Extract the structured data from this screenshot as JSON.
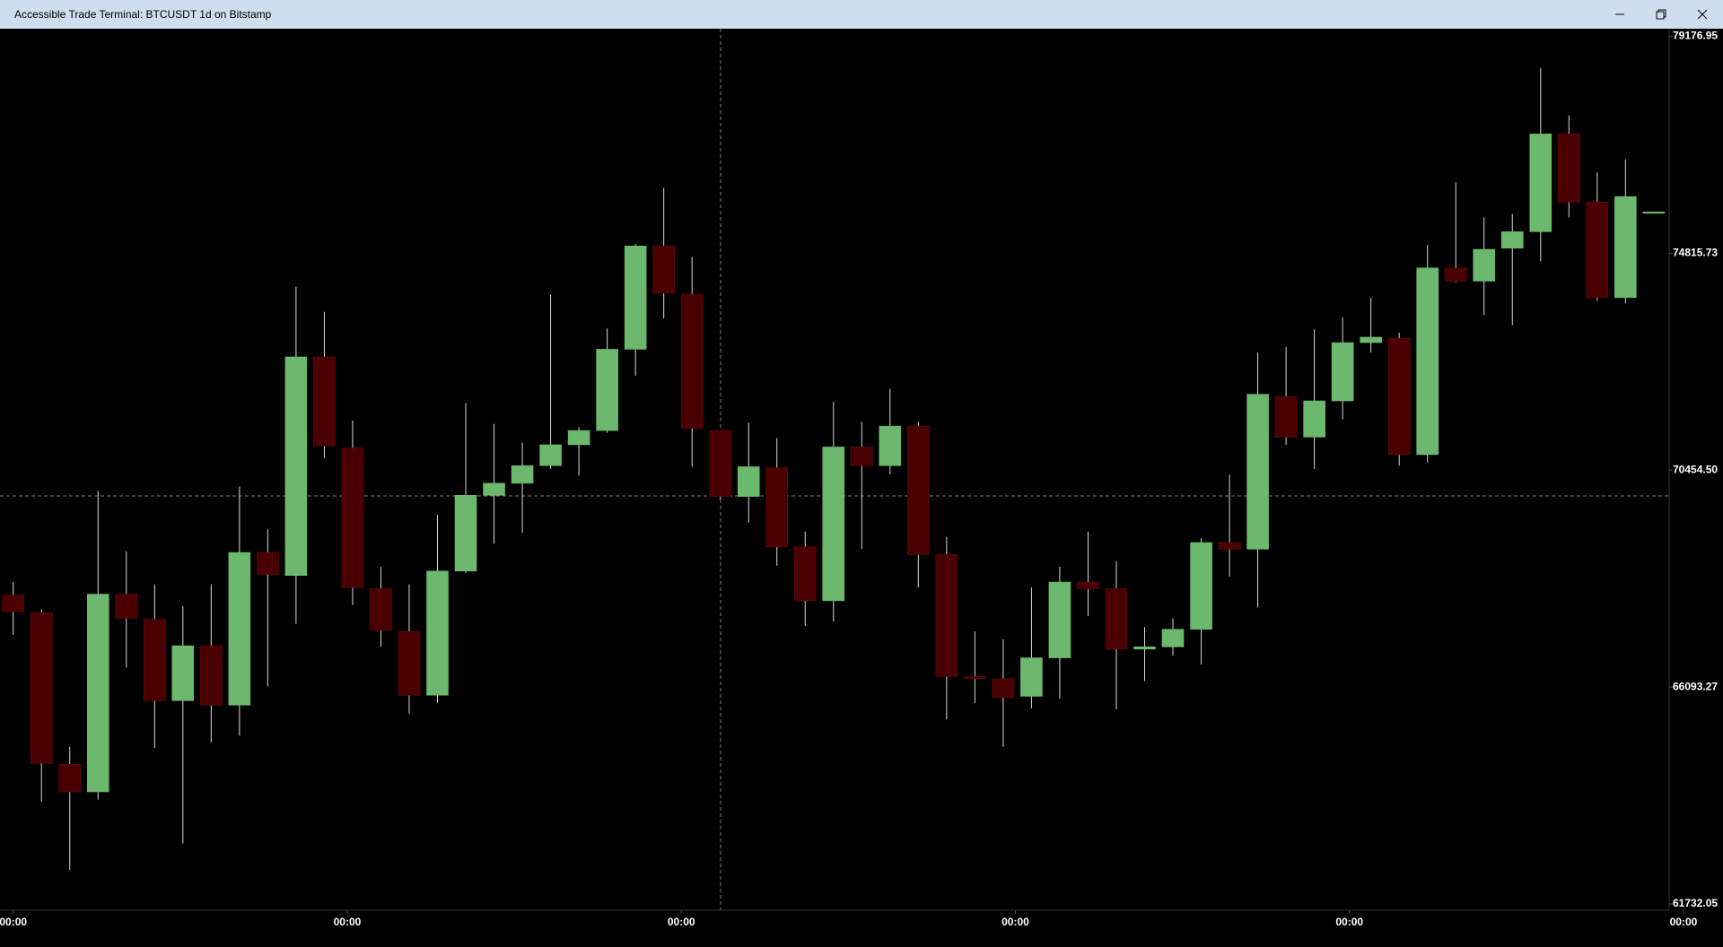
{
  "chart_data": {
    "type": "candlestick",
    "title": "Accessible Trade Terminal: BTCUSDT 1d on Bitstamp",
    "up_color": "#6cb86e",
    "down_color": "#4a0000",
    "wick_color": "#d8d8d8",
    "open": [
      67938,
      67585,
      64538,
      63986,
      67960,
      67453,
      65819,
      66923,
      65730,
      68799,
      68336,
      72730,
      70897,
      68071,
      67210,
      65929,
      68424,
      69948,
      70190,
      70544,
      70963,
      71250,
      72884,
      74960,
      73988,
      71250,
      69925,
      70500,
      68910,
      67828,
      70919,
      70544,
      71339,
      68755,
      66304,
      66260,
      65907,
      66680,
      68203,
      68071,
      66856,
      66901,
      67254,
      68998,
      68866,
      71935,
      71118,
      71846,
      73017,
      73105,
      70765,
      74518,
      74253,
      74916,
      75247,
      77212,
      75843,
      73922,
      75644
    ],
    "high": [
      68203,
      67651,
      64891,
      70036,
      68821,
      68159,
      67717,
      68159,
      70124,
      69263,
      74143,
      73635,
      71449,
      68512,
      68159,
      69550,
      71802,
      71383,
      71007,
      73988,
      71317,
      73304,
      75004,
      76130,
      74739,
      71250,
      71405,
      71096,
      69219,
      71824,
      71427,
      72089,
      71427,
      69109,
      67210,
      67055,
      68093,
      68512,
      69219,
      68623,
      67298,
      67475,
      69086,
      70367,
      72818,
      72928,
      73282,
      73525,
      73922,
      73215,
      74982,
      76240,
      75534,
      75600,
      78537,
      77587,
      76439,
      76704,
      75644
    ],
    "low": [
      67143,
      63787,
      62418,
      63831,
      66481,
      64869,
      62948,
      64980,
      65112,
      66106,
      67364,
      70698,
      67740,
      66901,
      65554,
      65774,
      68380,
      68976,
      69197,
      70477,
      70345,
      71206,
      72354,
      73502,
      70522,
      69859,
      69396,
      68534,
      67320,
      67408,
      68866,
      70367,
      68093,
      65443,
      65774,
      64891,
      65664,
      65863,
      67519,
      65642,
      66216,
      66724,
      66547,
      68314,
      67695,
      70963,
      70477,
      71471,
      72818,
      70544,
      70610,
      74231,
      73569,
      73370,
      74651,
      75534,
      73856,
      73812,
      75644
    ],
    "close": [
      67607,
      64560,
      63986,
      67960,
      67475,
      65819,
      66923,
      65730,
      68799,
      68358,
      72730,
      70941,
      68093,
      67232,
      65929,
      68424,
      69948,
      70190,
      70544,
      70963,
      71250,
      72884,
      74960,
      74010,
      71294,
      69925,
      70522,
      68910,
      67828,
      70919,
      70544,
      71339,
      68755,
      66304,
      66260,
      65885,
      66680,
      68203,
      68071,
      66856,
      66901,
      67254,
      68998,
      68866,
      71979,
      71118,
      71846,
      73017,
      73127,
      70765,
      74518,
      74253,
      74893,
      75247,
      77212,
      75843,
      73922,
      75953,
      75644
    ],
    "ylim": [
      61732.05,
      79176.95
    ],
    "yticks": [
      61732.05,
      66093.27,
      {
        "value": 70454.5,
        "label": "70454.50"
      },
      74815.73,
      79176.95
    ],
    "xticks": [
      {
        "value": 0,
        "label": "00:00"
      },
      {
        "value": 11.81,
        "label": "00:00"
      },
      {
        "value": 23.62,
        "label": "00:00"
      },
      {
        "value": 35.43,
        "label": "00:00"
      },
      {
        "value": 47.24,
        "label": "00:00"
      },
      {
        "value": 59.05,
        "label": "00:00"
      }
    ]
  }
}
